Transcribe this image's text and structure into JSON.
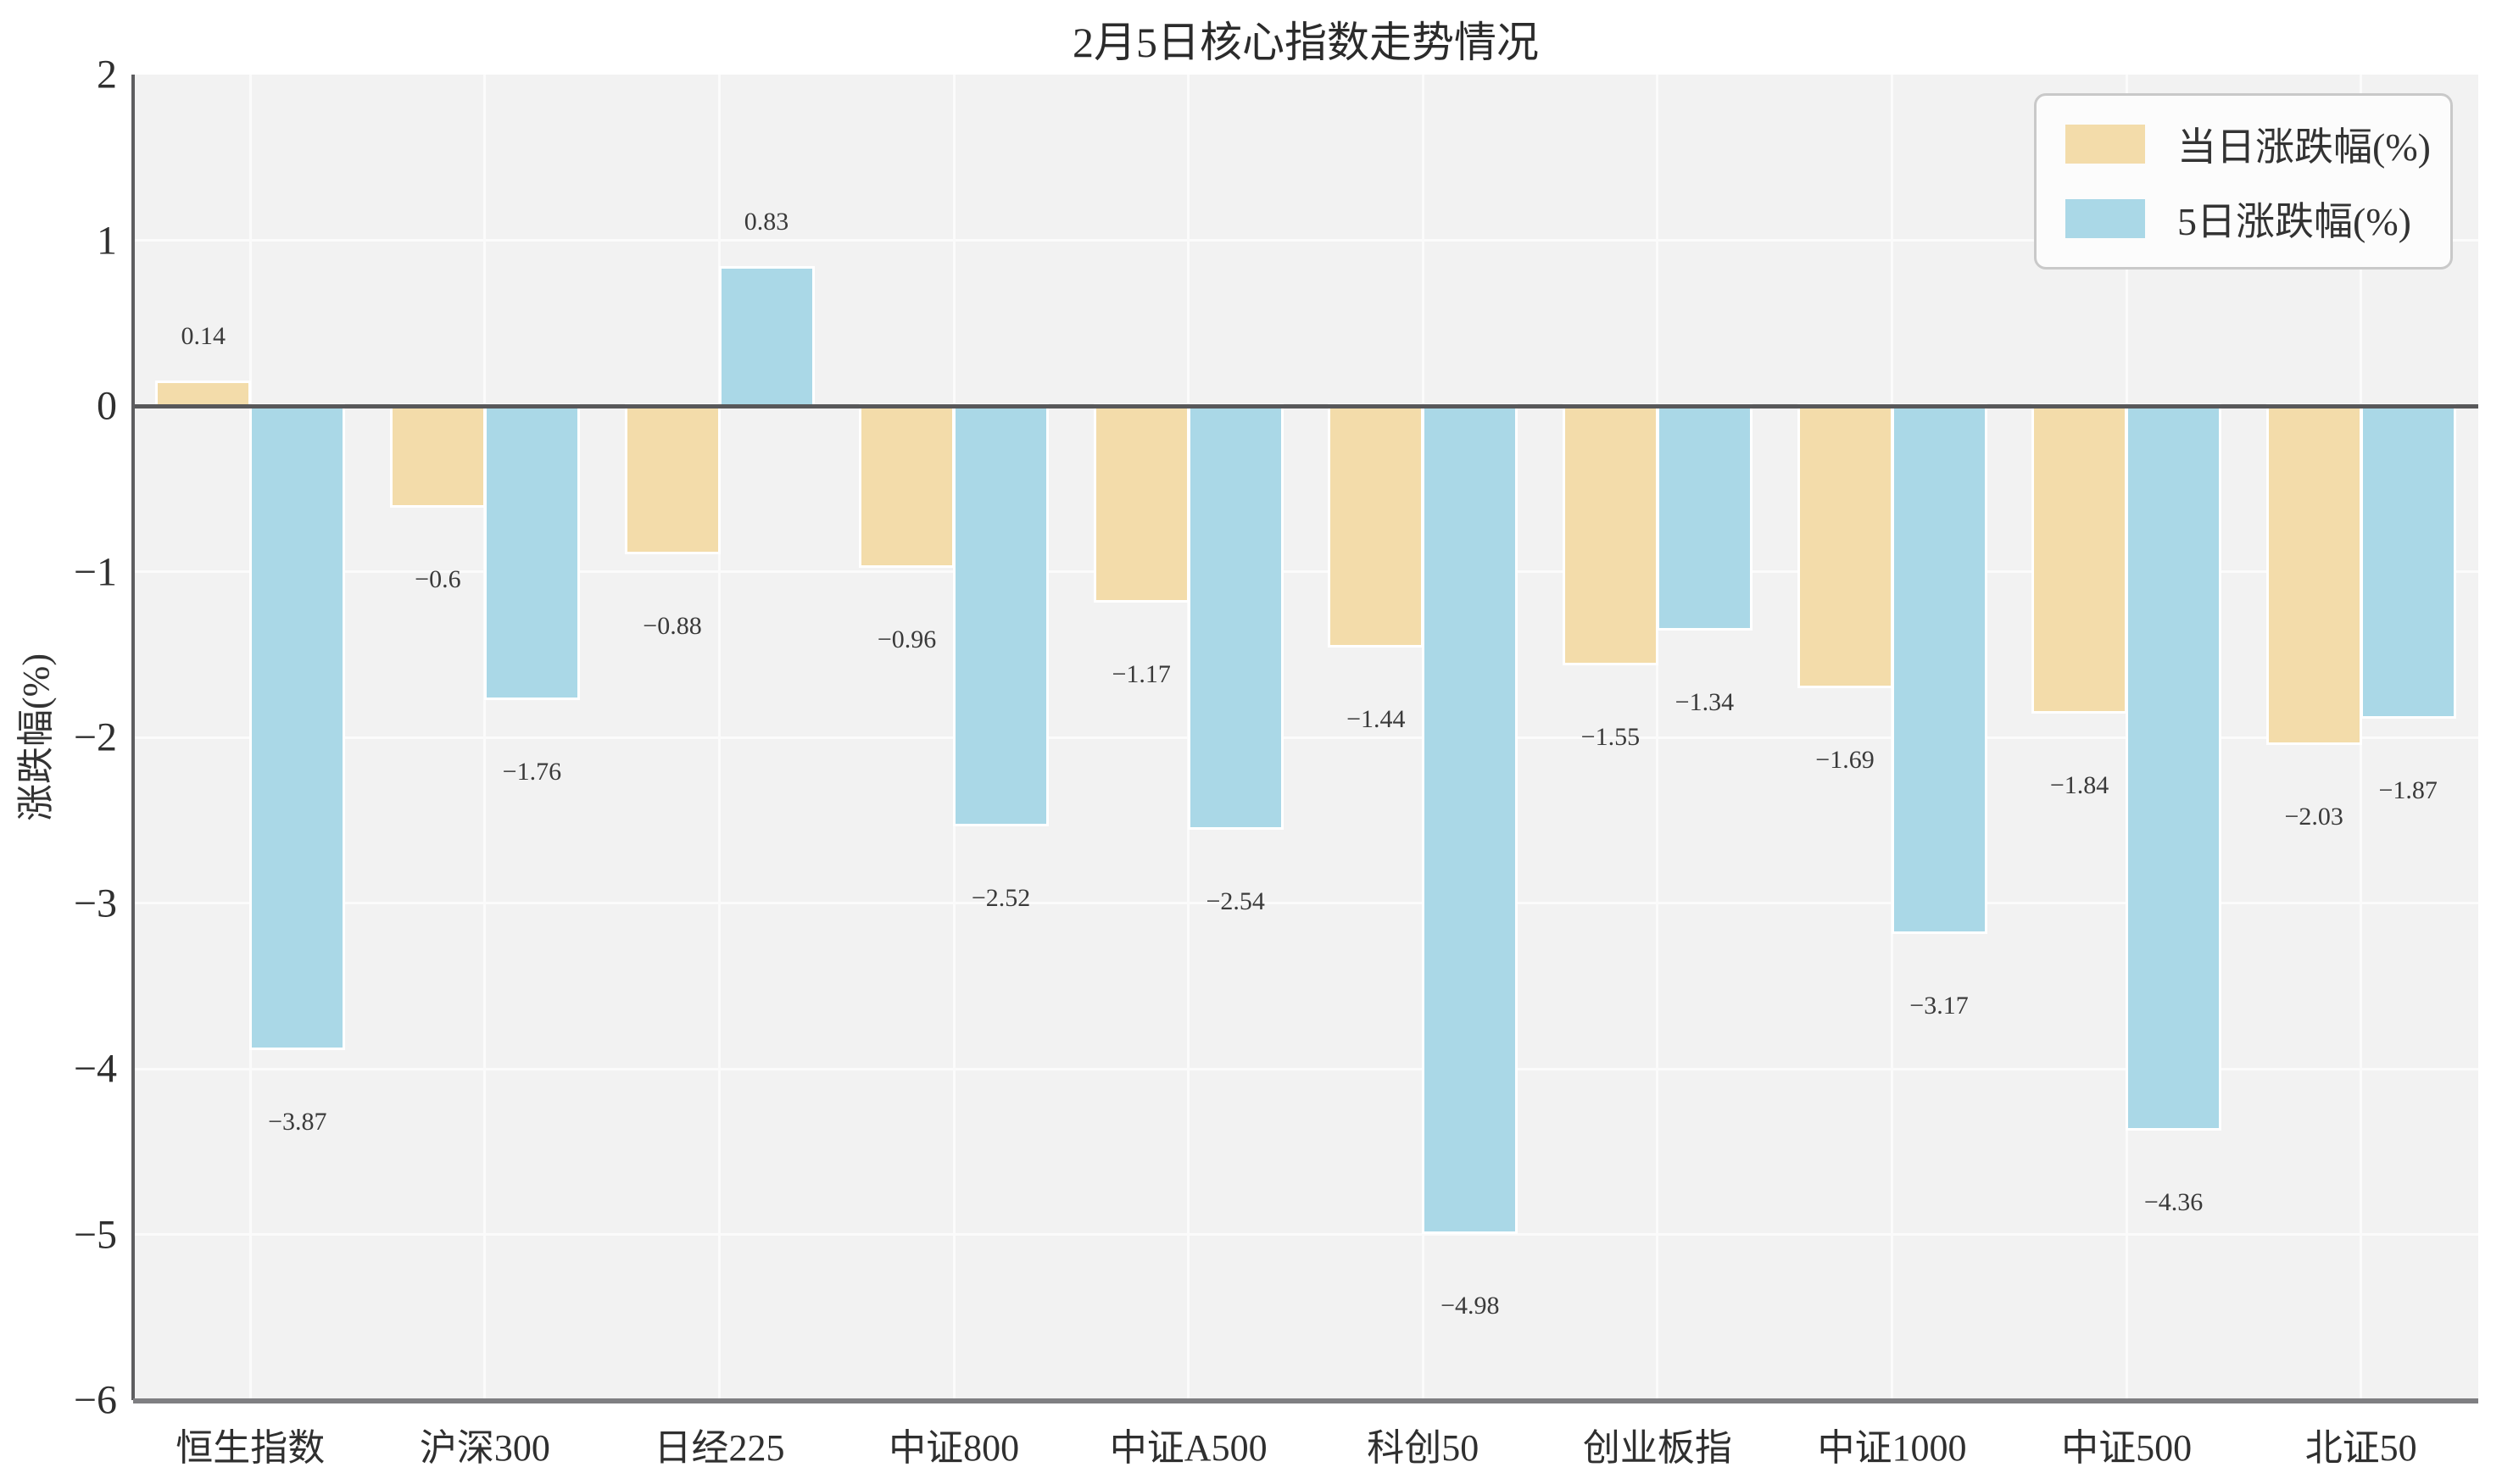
{
  "chart_data": {
    "type": "bar",
    "title": "2月5日核心指数走势情况",
    "ylabel": "涨跌幅(%)",
    "xlabel": "",
    "categories": [
      "恒生指数",
      "沪深300",
      "日经225",
      "中证800",
      "中证A500",
      "科创50",
      "创业板指",
      "中证1000",
      "中证500",
      "北证50"
    ],
    "series": [
      {
        "name": "当日涨跌幅(%)",
        "color": "#f3dcaa",
        "values": [
          0.14,
          -0.6,
          -0.88,
          -0.96,
          -1.17,
          -1.44,
          -1.55,
          -1.69,
          -1.84,
          -2.03
        ]
      },
      {
        "name": "5日涨跌幅(%)",
        "color": "#aad8e7",
        "values": [
          -3.87,
          -1.76,
          0.83,
          -2.52,
          -2.54,
          -4.98,
          -1.34,
          -3.17,
          -4.36,
          -1.87
        ]
      }
    ],
    "ylim": [
      -6,
      2
    ],
    "yticks": [
      2,
      1,
      0,
      -1,
      -2,
      -3,
      -4,
      -5,
      -6
    ],
    "grid": true,
    "legend_position": "upper right",
    "bar_labels_shown": true
  },
  "colors": {
    "plot_background": "#f2f2f2",
    "gridline": "#fbfbfb",
    "zero_line": "#58585a",
    "bar_edge": "#ffffff",
    "daily_series": "#f3dcaa",
    "five_day_series": "#aad8e7"
  }
}
